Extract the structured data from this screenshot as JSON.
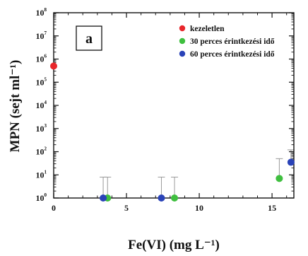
{
  "chart_data": {
    "type": "scatter",
    "panel_label": "a",
    "xlabel": "Fe(VI) (mg L⁻¹)",
    "ylabel": "MPN (sejt ml⁻¹)",
    "xlim": [
      0,
      16.5
    ],
    "ylim_log10": [
      0,
      8
    ],
    "y_scale": "log",
    "x_ticks": [
      0,
      5,
      10,
      15
    ],
    "y_tick_base": "10",
    "y_tick_exponents": [
      0,
      1,
      2,
      3,
      4,
      5,
      6,
      7,
      8
    ],
    "legend_position": "top-right",
    "series": [
      {
        "name": "kezeletlen",
        "color": "#e8262b",
        "points": [
          {
            "x": 0,
            "y": 500000,
            "err_high": null
          }
        ]
      },
      {
        "name": "30 perces érintkezési idő",
        "color": "#3fbf3f",
        "points": [
          {
            "x": 3.7,
            "y": 1,
            "err_high": 8
          },
          {
            "x": 8.3,
            "y": 1,
            "err_high": 8
          },
          {
            "x": 15.5,
            "y": 7,
            "err_high": 50
          }
        ]
      },
      {
        "name": "60 perces érintkezési idő",
        "color": "#2a43b8",
        "points": [
          {
            "x": 3.4,
            "y": 1,
            "err_high": 8
          },
          {
            "x": 7.4,
            "y": 1,
            "err_high": 8
          },
          {
            "x": 16.3,
            "y": 35,
            "err_high": 120
          }
        ]
      }
    ]
  }
}
